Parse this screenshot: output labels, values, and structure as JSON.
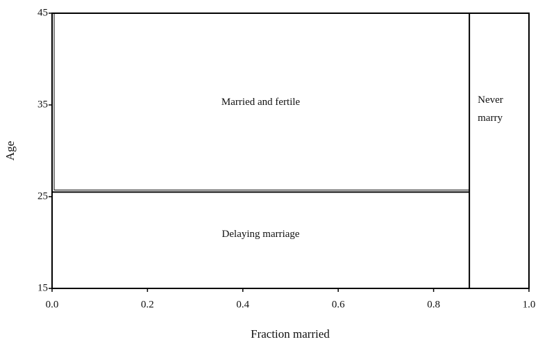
{
  "chart_data": {
    "type": "region",
    "xlabel": "Fraction married",
    "ylabel": "Age",
    "xlim": [
      0,
      1
    ],
    "ylim": [
      15,
      45
    ],
    "xticks": [
      {
        "value": 0,
        "label": "0.0"
      },
      0.2,
      0.4,
      0.6,
      0.8,
      {
        "value": 1,
        "label": "1.0"
      }
    ],
    "yticks": [
      15,
      25,
      35,
      45
    ],
    "married_fraction": 0.875,
    "marriage_age": 25.5,
    "annotations": {
      "married": "Married and fertile",
      "delaying": "Delaying marriage",
      "never": [
        "Never",
        "marry"
      ]
    }
  }
}
